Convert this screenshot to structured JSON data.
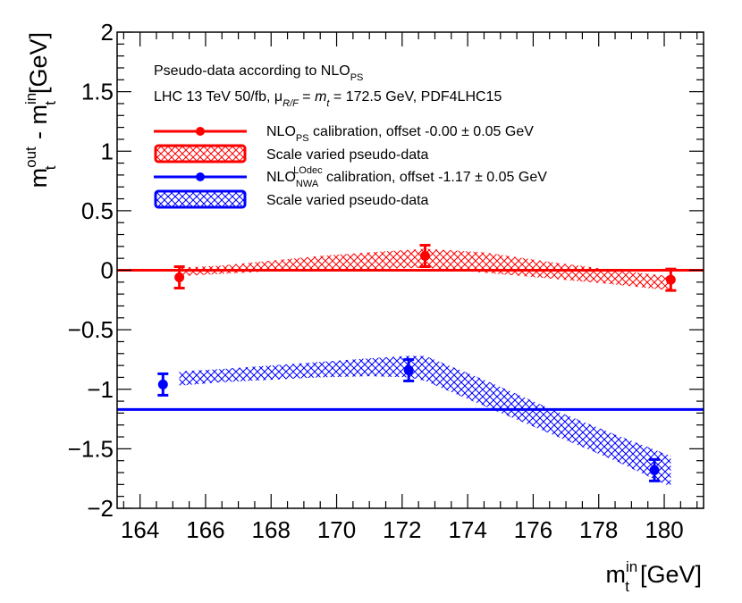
{
  "chart_data": {
    "type": "scatter",
    "xlabel": "m_t^in [GeV]",
    "ylabel": "m_t^out - m_t^in [GeV]",
    "xlim": [
      163.3,
      181.2
    ],
    "ylim": [
      -2,
      2
    ],
    "x_ticks": [
      164,
      166,
      168,
      170,
      172,
      174,
      176,
      178,
      180
    ],
    "x_tick_labels": [
      "164",
      "166",
      "168",
      "170",
      "172",
      "174",
      "176",
      "178",
      "180"
    ],
    "y_ticks": [
      -2,
      -1.5,
      -1,
      -0.5,
      0,
      0.5,
      1,
      1.5,
      2
    ],
    "y_tick_labels": [
      "−2",
      "−1.5",
      "−1",
      "−0.5",
      "0",
      "0.5",
      "1",
      "1.5",
      "2"
    ],
    "axis_title_x": {
      "main": "m",
      "sup": "in",
      "sub": "t",
      "unit": "[GeV]"
    },
    "axis_title_y": {
      "a_main": "m",
      "a_sup": "out",
      "a_sub": "t",
      "sep": " - ",
      "b_main": "m",
      "b_sup": "in",
      "b_sub": "t",
      "unit": "[GeV]"
    },
    "annotations": {
      "line1_main": "Pseudo-data according to NLO",
      "line1_sub": "PS",
      "line2_a": "LHC 13 TeV 50/fb, μ",
      "line2_sub": "R/F",
      "line2_eq": " = ",
      "line2_mt": "m",
      "line2_mt_sub": "t",
      "line2_b": " = 172.5 GeV, PDF4LHC15"
    },
    "series": [
      {
        "name": "NLO_PS calibration",
        "color": "#ff0000",
        "points": [
          {
            "x": 165.2,
            "y": -0.06,
            "err": 0.09
          },
          {
            "x": 172.7,
            "y": 0.12,
            "err": 0.09
          },
          {
            "x": 180.2,
            "y": -0.08,
            "err": 0.09
          }
        ],
        "offset": -0.0,
        "offset_err": 0.05,
        "band": {
          "x": [
            165.2,
            166.5,
            168.0,
            169.5,
            171.0,
            172.7,
            174.5,
            176.5,
            178.5,
            180.2
          ],
          "low": [
            -0.05,
            -0.03,
            -0.01,
            0.0,
            0.01,
            0.02,
            -0.02,
            -0.07,
            -0.12,
            -0.17
          ],
          "high": [
            0.02,
            0.04,
            0.08,
            0.12,
            0.15,
            0.18,
            0.15,
            0.07,
            0.0,
            -0.05
          ]
        },
        "legend_main": "NLO",
        "legend_sub": "PS",
        "legend_rest": " calibration, offset -0.00 ± 0.05 GeV",
        "band_legend": "Scale varied pseudo-data"
      },
      {
        "name": "NLO_NWA^LOdec calibration",
        "color": "#0000ff",
        "points": [
          {
            "x": 164.7,
            "y": -0.96,
            "err": 0.09
          },
          {
            "x": 172.2,
            "y": -0.84,
            "err": 0.09
          },
          {
            "x": 179.7,
            "y": -1.68,
            "err": 0.09
          }
        ],
        "offset": -1.17,
        "offset_err": 0.05,
        "band": {
          "x": [
            165.2,
            166.5,
            168.0,
            169.5,
            171.0,
            172.2,
            172.7,
            174.5,
            176.5,
            178.5,
            180.2
          ],
          "low": [
            -0.97,
            -0.94,
            -0.92,
            -0.9,
            -0.89,
            -0.9,
            -0.93,
            -1.14,
            -1.37,
            -1.6,
            -1.82
          ],
          "high": [
            -0.85,
            -0.83,
            -0.8,
            -0.77,
            -0.74,
            -0.72,
            -0.72,
            -0.92,
            -1.16,
            -1.38,
            -1.56
          ]
        },
        "legend_main": "NLO",
        "legend_sub": "NWA",
        "legend_sup": "LOdec",
        "legend_rest": " calibration, offset -1.17 ± 0.05 GeV",
        "band_legend": "Scale varied pseudo-data"
      }
    ]
  }
}
